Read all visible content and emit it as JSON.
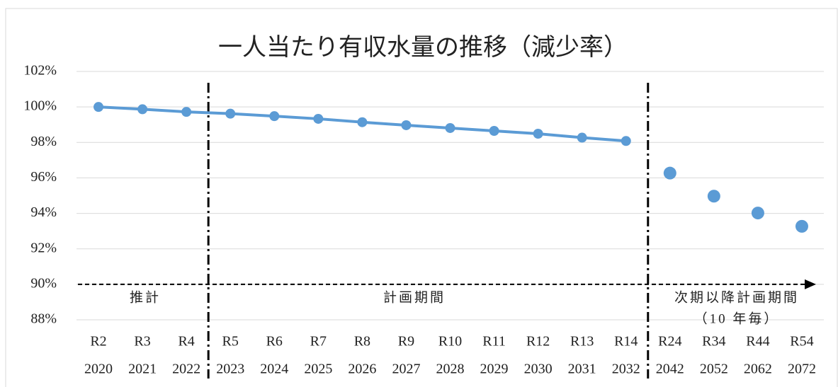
{
  "chart_data": {
    "type": "line",
    "title": "一人当たり有収水量の推移（減少率）",
    "categories": [
      [
        "R2",
        "2020"
      ],
      [
        "R3",
        "2021"
      ],
      [
        "R4",
        "2022"
      ],
      [
        "R5",
        "2023"
      ],
      [
        "R6",
        "2024"
      ],
      [
        "R7",
        "2025"
      ],
      [
        "R8",
        "2026"
      ],
      [
        "R9",
        "2027"
      ],
      [
        "R10",
        "2028"
      ],
      [
        "R11",
        "2029"
      ],
      [
        "R12",
        "2030"
      ],
      [
        "R13",
        "2031"
      ],
      [
        "R14",
        "2032"
      ],
      [
        "R24",
        "2042"
      ],
      [
        "R34",
        "2052"
      ],
      [
        "R44",
        "2062"
      ],
      [
        "R54",
        "2072"
      ]
    ],
    "series": [
      {
        "color": "#5b9bd5",
        "line": true,
        "values": [
          100,
          99.87,
          99.72,
          99.62,
          99.48,
          99.33,
          99.14,
          98.97,
          98.81,
          98.65,
          98.49,
          98.27,
          98.08,
          null,
          null,
          null,
          null
        ]
      },
      {
        "color": "#5b9bd5",
        "line": false,
        "values": [
          null,
          null,
          null,
          null,
          null,
          null,
          null,
          null,
          null,
          null,
          null,
          null,
          null,
          96.27,
          94.97,
          94.02,
          93.27
        ]
      }
    ],
    "ylim": [
      88,
      102
    ],
    "yticks": [
      {
        "value": 88,
        "label": "88%"
      },
      {
        "value": 90,
        "label": "90%"
      },
      {
        "value": 92,
        "label": "92%"
      },
      {
        "value": 94,
        "label": "94%"
      },
      {
        "value": 96,
        "label": "96%"
      },
      {
        "value": 98,
        "label": "98%"
      },
      {
        "value": 100,
        "label": "100%"
      },
      {
        "value": 102,
        "label": "102%"
      }
    ],
    "grid": true,
    "annotations": [
      "推計",
      "計画期間",
      "次期以降計画期間",
      "（10 年毎）"
    ]
  }
}
